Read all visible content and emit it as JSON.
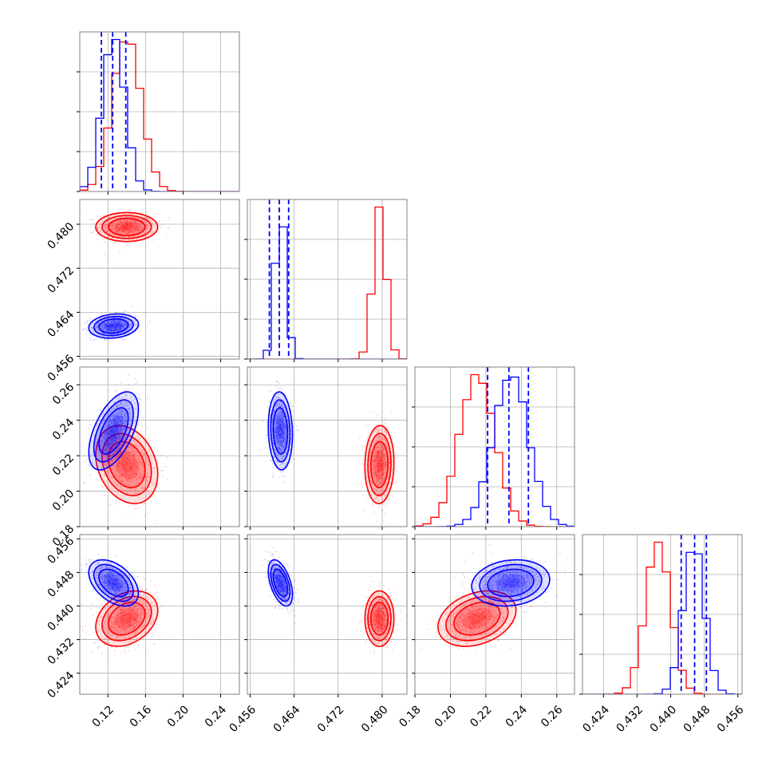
{
  "chart_data": {
    "type": "corner",
    "title": "",
    "grid": true,
    "legend": "none",
    "colors": {
      "red": "#ff0000",
      "blue": "#0000ff"
    },
    "parameters": [
      {
        "index": 0,
        "xlim": [
          0.09,
          0.26
        ],
        "ticks": [
          0.12,
          0.16,
          0.2,
          0.24
        ],
        "tick_labels": [
          "0.12",
          "0.16",
          "0.20",
          "0.24"
        ]
      },
      {
        "index": 1,
        "xlim": [
          0.4555,
          0.4845
        ],
        "ticks": [
          0.456,
          0.464,
          0.472,
          0.48
        ],
        "tick_labels": [
          "0.456",
          "0.464",
          "0.472",
          "0.480"
        ]
      },
      {
        "index": 2,
        "xlim": [
          0.18,
          0.27
        ],
        "ticks": [
          0.18,
          0.2,
          0.22,
          0.24,
          0.26
        ],
        "tick_labels": [
          "0.18",
          "0.20",
          "0.22",
          "0.24",
          "0.26"
        ]
      },
      {
        "index": 3,
        "xlim": [
          0.419,
          0.457
        ],
        "ticks": [
          0.424,
          0.432,
          0.44,
          0.448,
          0.456
        ],
        "tick_labels": [
          "0.424",
          "0.432",
          "0.440",
          "0.448",
          "0.456"
        ]
      }
    ],
    "series": [
      {
        "color": "red",
        "means": [
          0.14,
          0.4795,
          0.215,
          0.437
        ],
        "sigmas": [
          0.015,
          0.0012,
          0.01,
          0.003
        ],
        "correlations": {
          "1-0": 0.0,
          "2-0": -0.25,
          "2-1": 0.05,
          "3-0": 0.3,
          "3-1": 0.0,
          "3-2": 0.3
        },
        "quantiles": []
      },
      {
        "color": "blue",
        "means": [
          0.126,
          0.4615,
          0.234,
          0.4455
        ],
        "sigmas": [
          0.012,
          0.001,
          0.01,
          0.0025
        ],
        "correlations": {
          "1-0": 0.15,
          "2-0": 0.55,
          "2-1": -0.1,
          "3-0": -0.45,
          "3-1": -0.5,
          "3-2": 0.15
        },
        "quantiles": [
          [
            0.113,
            0.125,
            0.139
          ],
          [
            0.4595,
            0.4613,
            0.463
          ],
          [
            0.221,
            0.233,
            0.244
          ],
          [
            0.4425,
            0.4457,
            0.4485
          ]
        ]
      }
    ]
  }
}
